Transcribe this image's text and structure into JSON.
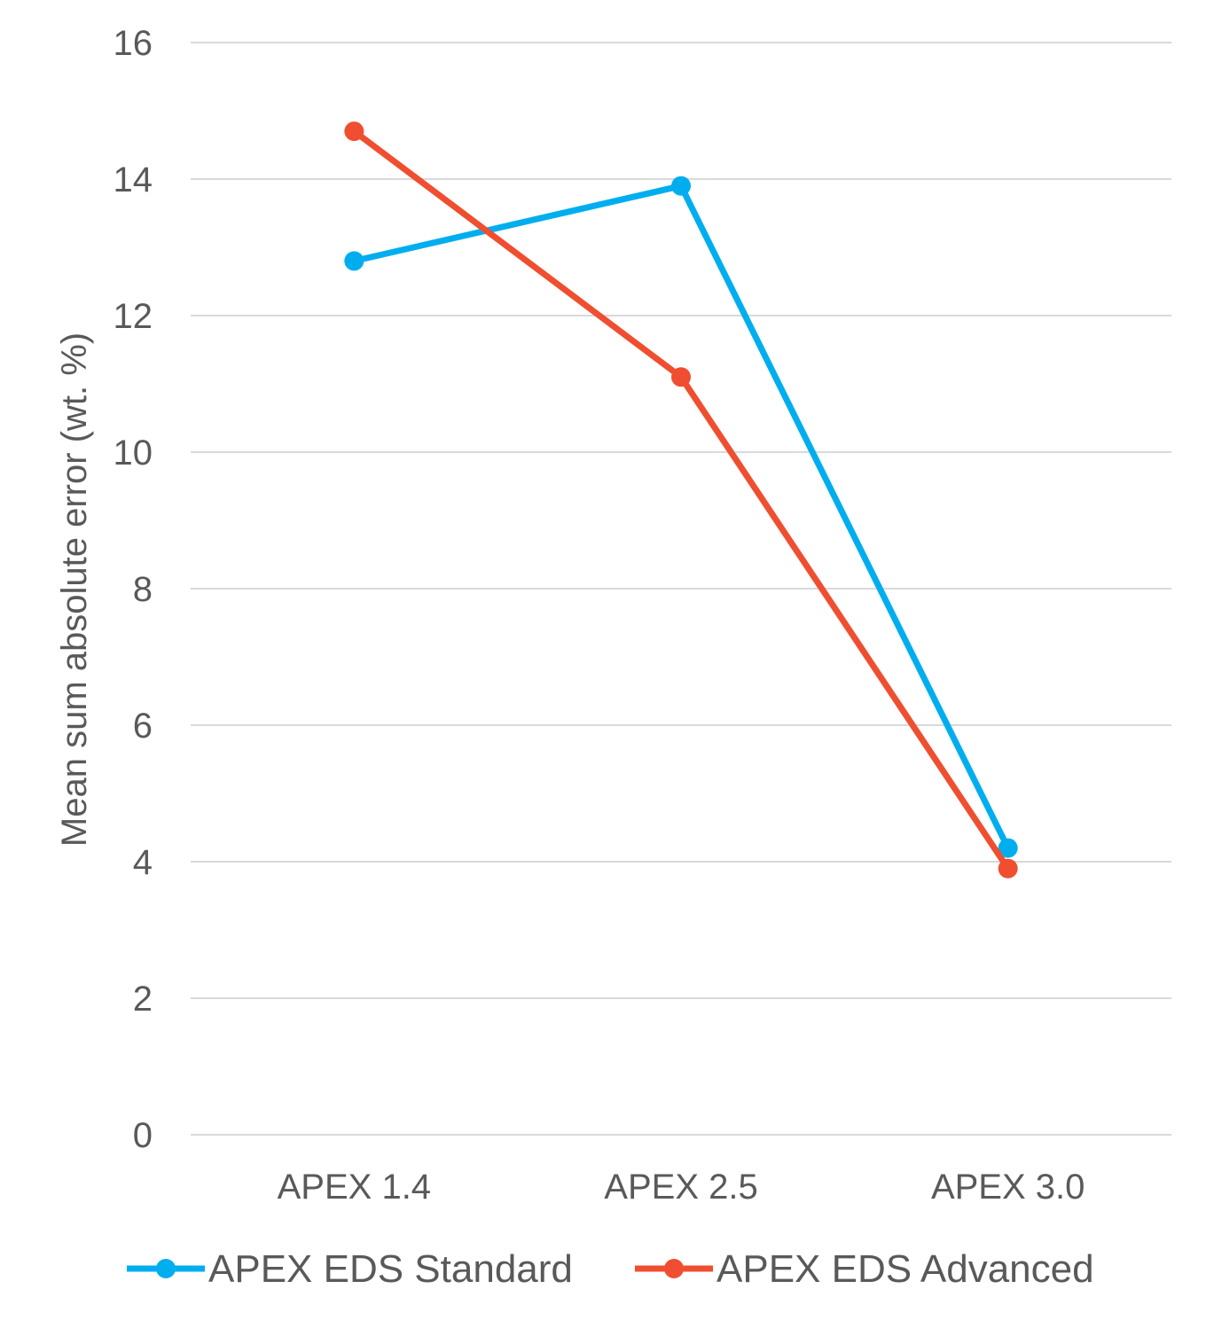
{
  "chart_data": {
    "type": "line",
    "title": "",
    "xlabel": "",
    "ylabel": "Mean sum absolute error (wt. %)",
    "categories": [
      "APEX 1.4",
      "APEX 2.5",
      "APEX 3.0"
    ],
    "ylim": [
      0,
      16
    ],
    "yticks": [
      0,
      2,
      4,
      6,
      8,
      10,
      12,
      14,
      16
    ],
    "grid": true,
    "legend_position": "bottom",
    "series": [
      {
        "name": "APEX EDS Standard",
        "color": "#00AEEF",
        "values": [
          12.8,
          13.9,
          4.2
        ]
      },
      {
        "name": "APEX EDS Advanced",
        "color": "#F04E30",
        "values": [
          14.7,
          11.1,
          3.9
        ]
      }
    ]
  }
}
